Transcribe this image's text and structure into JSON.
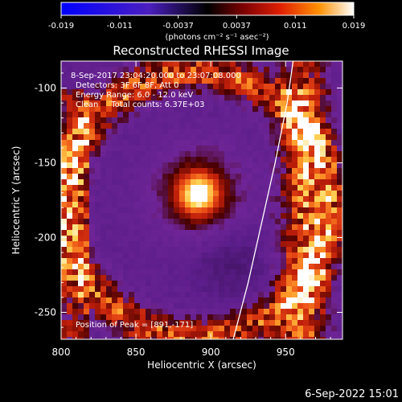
{
  "colorbar": {
    "ticks": [
      "-0.019",
      "-0.011",
      "-0.0037",
      "0.0037",
      "0.011",
      "0.019"
    ],
    "unit_label": "(photons cm⁻² s⁻¹ asec⁻²)",
    "range": [
      -0.019,
      0.019
    ]
  },
  "chart_data": {
    "type": "heatmap",
    "title": "Reconstructed RHESSI Image",
    "xlabel": "Heliocentric X (arcsec)",
    "ylabel": "Heliocentric Y (arcsec)",
    "xlim": [
      800,
      988
    ],
    "ylim": [
      -268,
      -82
    ],
    "xticks": [
      "800",
      "850",
      "900",
      "950"
    ],
    "yticks": [
      "-100",
      "-150",
      "-200",
      "-250"
    ],
    "xtick_values": [
      800,
      850,
      900,
      950
    ],
    "ytick_values": [
      -100,
      -150,
      -200,
      -250
    ],
    "info_lines": [
      "8-Sep-2017 23:04:20.000 to 23:07:08.000",
      "Detectors: 3F 6F 8F, Att 0",
      "Energy Range: 6.0 - 12.0 keV",
      "Clean     Total counts: 6.37E+03"
    ],
    "peak_label": "Position of Peak = [891,-171]",
    "peak": [
      891,
      -171
    ],
    "limb": [
      [
        915,
        -268
      ],
      [
        925,
        -230
      ],
      [
        934,
        -190
      ],
      [
        943,
        -150
      ],
      [
        951,
        -110
      ],
      [
        955,
        -82
      ]
    ]
  },
  "footer": {
    "timestamp": "6-Sep-2022 15:01"
  }
}
